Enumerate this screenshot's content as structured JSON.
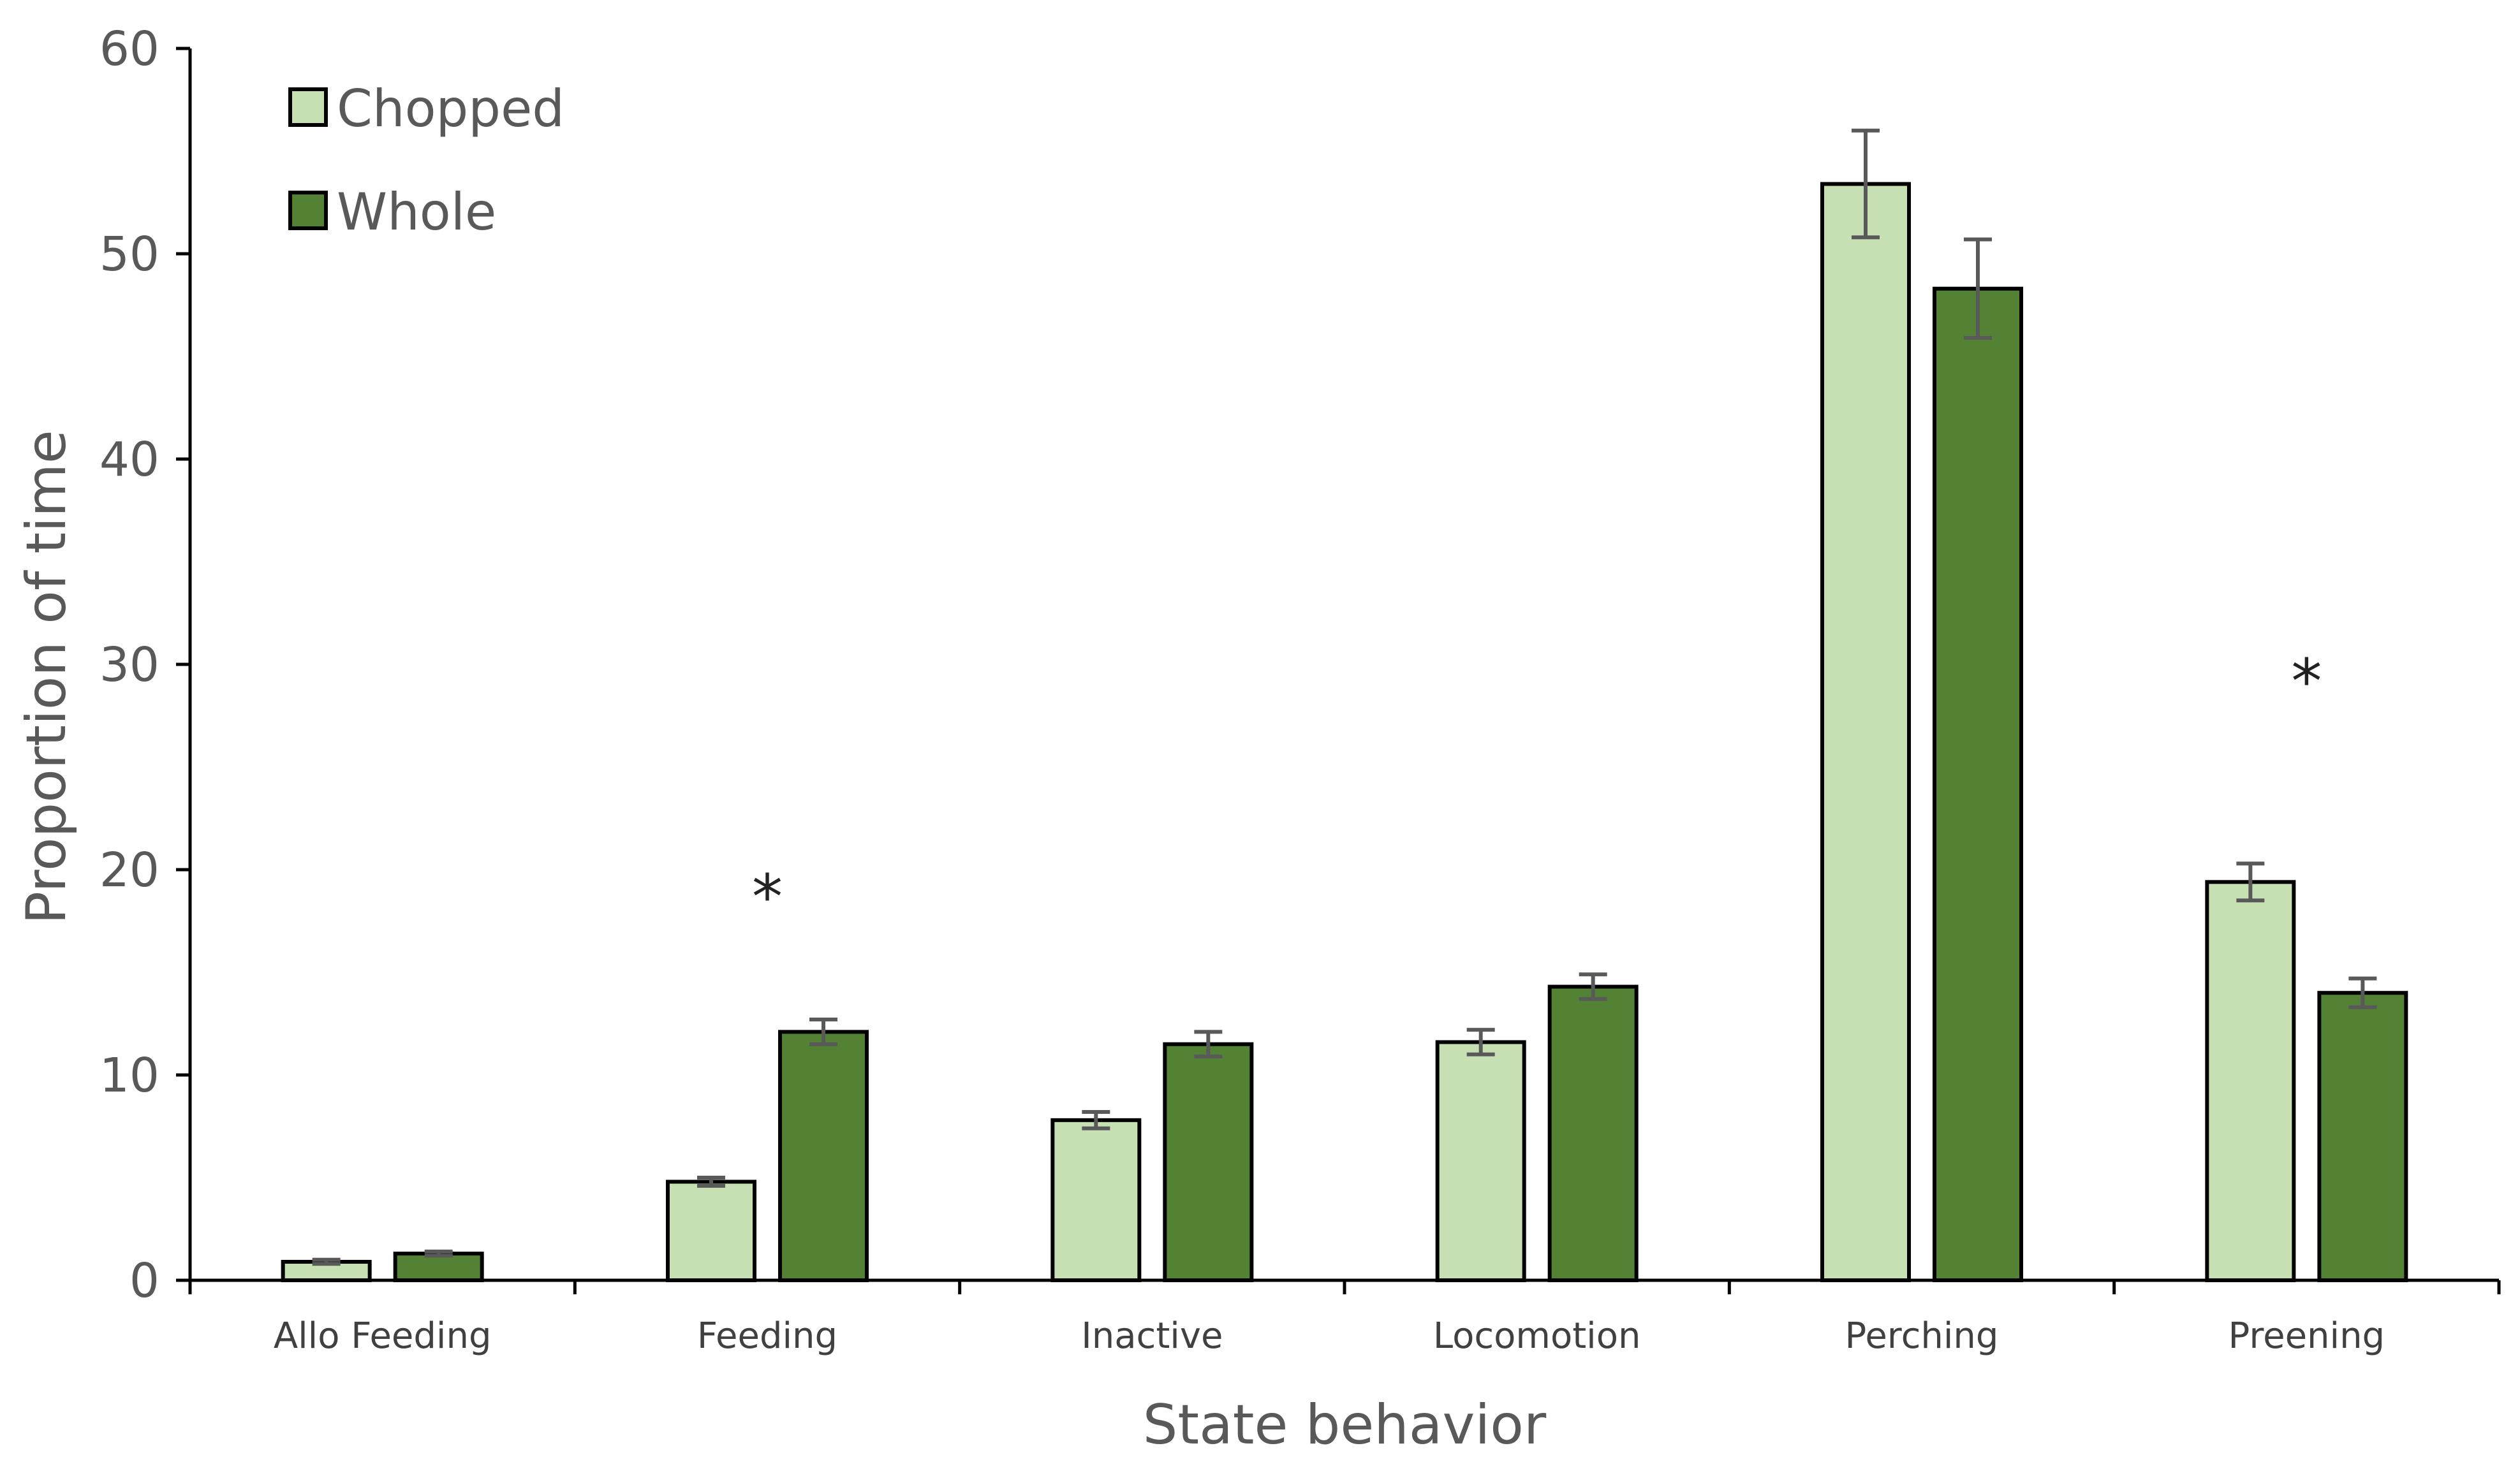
{
  "chart_data": {
    "type": "bar",
    "title": "",
    "xlabel": "State behavior",
    "ylabel": "Proportion of time",
    "ylim": [
      0,
      60
    ],
    "yticks": [
      0,
      10,
      20,
      30,
      40,
      50,
      60
    ],
    "grid": false,
    "legend_position": "top-left",
    "categories": [
      "Allo Feeding",
      "Feeding",
      "Inactive",
      "Locomotion",
      "Perching",
      "Preening"
    ],
    "series": [
      {
        "name": "Chopped",
        "color": "#c6e0b4",
        "values": [
          0.9,
          4.8,
          7.8,
          11.6,
          53.4,
          19.4
        ],
        "errors": [
          0.1,
          0.2,
          0.4,
          0.6,
          2.6,
          0.9
        ]
      },
      {
        "name": "Whole",
        "color": "#548235",
        "values": [
          1.3,
          12.1,
          11.5,
          14.3,
          48.3,
          14.0
        ],
        "errors": [
          0.1,
          0.6,
          0.6,
          0.6,
          2.4,
          0.7
        ]
      }
    ],
    "annotations": [
      {
        "category": "Feeding",
        "text": "*",
        "y": 19.5
      },
      {
        "category": "Preening",
        "text": "*",
        "y": 30.0
      }
    ]
  }
}
